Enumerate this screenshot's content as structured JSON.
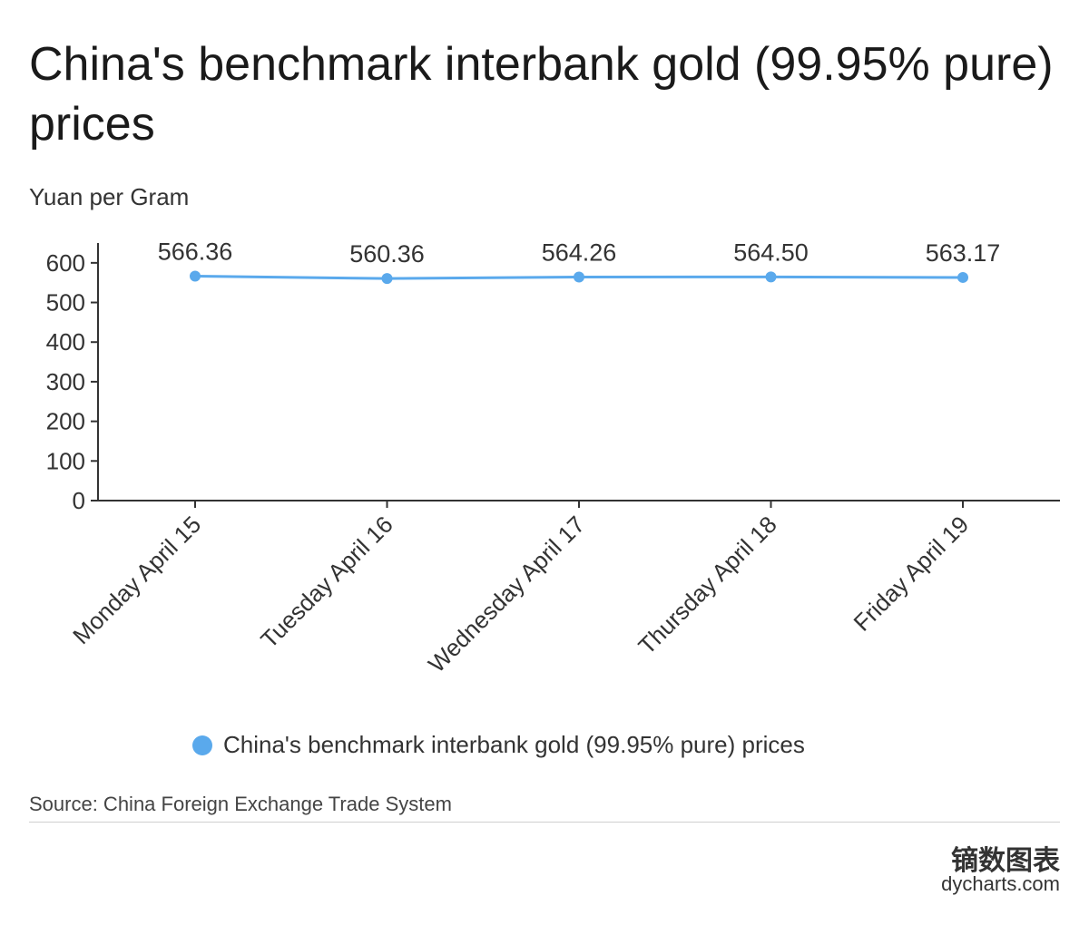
{
  "title": "China's benchmark interbank gold (99.95% pure) prices",
  "unit_label": "Yuan per Gram",
  "source": "Source: China Foreign Exchange Trade System",
  "brand": {
    "cn": "镝数图表",
    "en": "dycharts.com"
  },
  "colors": {
    "series": "#5aa9ec",
    "axis": "#333333"
  },
  "chart_data": {
    "type": "line",
    "categories": [
      "Monday April 15",
      "Tuesday April 16",
      "Wednesday April 17",
      "Thursday April 18",
      "Friday April 19"
    ],
    "series": [
      {
        "name": "China's benchmark interbank gold (99.95% pure) prices",
        "values": [
          566.36,
          560.36,
          564.26,
          564.5,
          563.17
        ],
        "labels": [
          "566.36",
          "560.36",
          "564.26",
          "564.50",
          "563.17"
        ]
      }
    ],
    "ylabel": "Yuan per Gram",
    "ylim": [
      0,
      650
    ],
    "yticks": [
      0,
      100,
      200,
      300,
      400,
      500,
      600
    ],
    "grid": false,
    "legend": "bottom"
  }
}
